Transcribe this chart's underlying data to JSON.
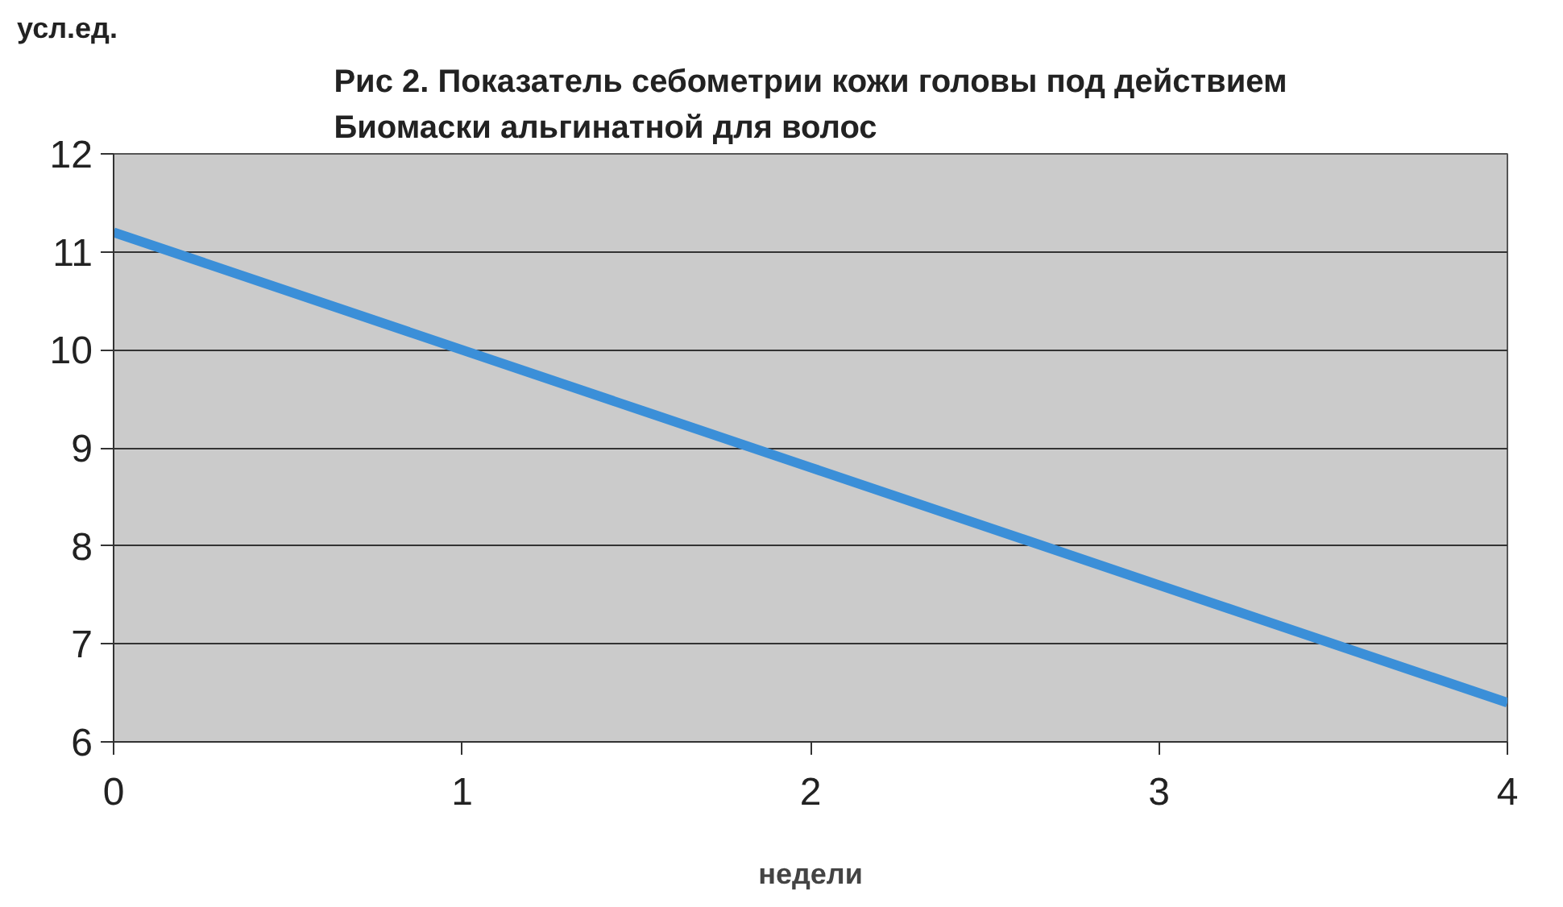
{
  "chart_data": {
    "type": "line",
    "title": "Рис 2. Показатель себометрии кожи головы под действием Биомаски альгинатной для волос",
    "ylabel": "усл.ед.",
    "xlabel": "недели",
    "x": [
      0,
      1,
      2,
      3,
      4
    ],
    "series": [
      {
        "color": "#3b8fd8",
        "values": [
          11.2,
          10.0,
          8.8,
          7.6,
          6.4
        ]
      }
    ],
    "xlim": [
      0,
      4
    ],
    "xticks": [
      0,
      1,
      2,
      3,
      4
    ],
    "ylim": [
      6,
      12
    ],
    "yticks": [
      6,
      7,
      8,
      9,
      10,
      11,
      12
    ],
    "grid": "y",
    "marker": "none",
    "line_style": "solid"
  }
}
